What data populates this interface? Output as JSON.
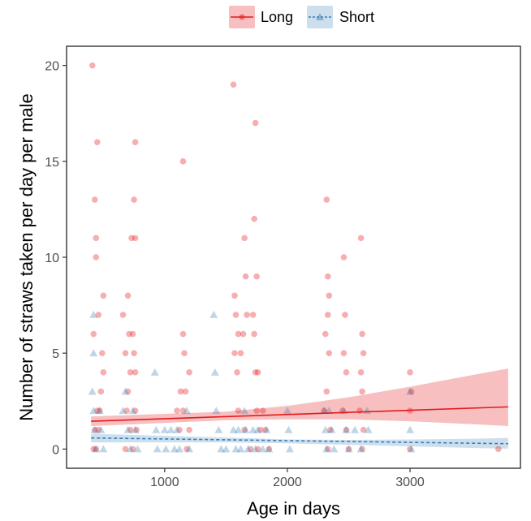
{
  "chart_data": {
    "type": "scatter",
    "title": "",
    "xlabel": "Age in days",
    "ylabel": "Number of straws taken per day per male",
    "xlim": [
      200,
      3900
    ],
    "ylim": [
      -1,
      21
    ],
    "xticks": [
      1000,
      2000,
      3000
    ],
    "yticks": [
      0,
      5,
      10,
      15,
      20
    ],
    "grid": false,
    "legend_position": "top",
    "series": [
      {
        "name": "Long",
        "color": "#e41a1c",
        "marker": "circle",
        "points": [
          [
            410,
            20
          ],
          [
            420,
            6
          ],
          [
            430,
            13
          ],
          [
            440,
            11
          ],
          [
            450,
            16
          ],
          [
            440,
            10
          ],
          [
            460,
            7
          ],
          [
            480,
            3
          ],
          [
            500,
            8
          ],
          [
            470,
            2
          ],
          [
            490,
            5
          ],
          [
            500,
            4
          ],
          [
            420,
            0
          ],
          [
            430,
            1
          ],
          [
            450,
            2
          ],
          [
            460,
            1
          ],
          [
            440,
            0
          ],
          [
            660,
            7
          ],
          [
            680,
            5
          ],
          [
            700,
            8
          ],
          [
            710,
            6
          ],
          [
            730,
            11
          ],
          [
            760,
            16
          ],
          [
            750,
            13
          ],
          [
            760,
            11
          ],
          [
            740,
            6
          ],
          [
            750,
            5
          ],
          [
            720,
            4
          ],
          [
            760,
            4
          ],
          [
            700,
            3
          ],
          [
            690,
            2
          ],
          [
            720,
            1
          ],
          [
            740,
            0
          ],
          [
            680,
            0
          ],
          [
            760,
            2
          ],
          [
            770,
            1
          ],
          [
            1130,
            3
          ],
          [
            1150,
            15
          ],
          [
            1150,
            6
          ],
          [
            1160,
            5
          ],
          [
            1170,
            3
          ],
          [
            1200,
            4
          ],
          [
            1100,
            2
          ],
          [
            1120,
            1
          ],
          [
            1180,
            0
          ],
          [
            1150,
            2
          ],
          [
            1200,
            1
          ],
          [
            1560,
            19
          ],
          [
            1570,
            8
          ],
          [
            1580,
            7
          ],
          [
            1570,
            5
          ],
          [
            1600,
            6
          ],
          [
            1620,
            5
          ],
          [
            1590,
            4
          ],
          [
            1650,
            11
          ],
          [
            1660,
            9
          ],
          [
            1670,
            7
          ],
          [
            1640,
            6
          ],
          [
            1730,
            12
          ],
          [
            1740,
            17
          ],
          [
            1750,
            9
          ],
          [
            1720,
            7
          ],
          [
            1730,
            6
          ],
          [
            1740,
            4
          ],
          [
            1760,
            4
          ],
          [
            1750,
            2
          ],
          [
            1780,
            1
          ],
          [
            1600,
            2
          ],
          [
            1650,
            1
          ],
          [
            1700,
            0
          ],
          [
            1760,
            0
          ],
          [
            1800,
            2
          ],
          [
            1820,
            1
          ],
          [
            1850,
            0
          ],
          [
            2320,
            13
          ],
          [
            2330,
            9
          ],
          [
            2340,
            8
          ],
          [
            2330,
            7
          ],
          [
            2310,
            6
          ],
          [
            2340,
            5
          ],
          [
            2320,
            3
          ],
          [
            2300,
            2
          ],
          [
            2350,
            1
          ],
          [
            2330,
            0
          ],
          [
            2460,
            10
          ],
          [
            2470,
            7
          ],
          [
            2460,
            5
          ],
          [
            2480,
            4
          ],
          [
            2450,
            2
          ],
          [
            2480,
            1
          ],
          [
            2500,
            0
          ],
          [
            2600,
            11
          ],
          [
            2610,
            6
          ],
          [
            2620,
            5
          ],
          [
            2600,
            4
          ],
          [
            2610,
            3
          ],
          [
            2590,
            2
          ],
          [
            2620,
            1
          ],
          [
            2610,
            0
          ],
          [
            3000,
            4
          ],
          [
            3010,
            3
          ],
          [
            3000,
            2
          ],
          [
            3000,
            0
          ],
          [
            3720,
            0
          ]
        ],
        "trend": [
          [
            400,
            1.45
          ],
          [
            3800,
            2.2
          ]
        ],
        "ci": [
          [
            400,
            1.2,
            1.7
          ],
          [
            1500,
            1.5,
            1.95
          ],
          [
            2000,
            1.55,
            2.25
          ],
          [
            2500,
            1.55,
            2.7
          ],
          [
            3000,
            1.45,
            3.25
          ],
          [
            3500,
            1.3,
            3.85
          ],
          [
            3800,
            1.2,
            4.2
          ]
        ]
      },
      {
        "name": "Short",
        "color": "#377eb8",
        "marker": "triangle",
        "points": [
          [
            420,
            7
          ],
          [
            420,
            5
          ],
          [
            410,
            3
          ],
          [
            420,
            2
          ],
          [
            430,
            1
          ],
          [
            440,
            0
          ],
          [
            470,
            2
          ],
          [
            480,
            1
          ],
          [
            500,
            0
          ],
          [
            660,
            2
          ],
          [
            680,
            3
          ],
          [
            700,
            1
          ],
          [
            720,
            0
          ],
          [
            740,
            2
          ],
          [
            760,
            1
          ],
          [
            780,
            0
          ],
          [
            920,
            4
          ],
          [
            930,
            1
          ],
          [
            940,
            0
          ],
          [
            1000,
            1
          ],
          [
            1010,
            0
          ],
          [
            1050,
            1
          ],
          [
            1080,
            0
          ],
          [
            1100,
            1
          ],
          [
            1120,
            0
          ],
          [
            1180,
            2
          ],
          [
            1200,
            0
          ],
          [
            1400,
            7
          ],
          [
            1410,
            4
          ],
          [
            1420,
            2
          ],
          [
            1440,
            1
          ],
          [
            1460,
            0
          ],
          [
            1500,
            0
          ],
          [
            1560,
            1
          ],
          [
            1580,
            0
          ],
          [
            1600,
            1
          ],
          [
            1620,
            0
          ],
          [
            1650,
            2
          ],
          [
            1660,
            1
          ],
          [
            1680,
            0
          ],
          [
            1720,
            1
          ],
          [
            1740,
            0
          ],
          [
            1760,
            1
          ],
          [
            1800,
            0
          ],
          [
            1830,
            1
          ],
          [
            1850,
            0
          ],
          [
            2000,
            2
          ],
          [
            2010,
            1
          ],
          [
            2020,
            0
          ],
          [
            2300,
            2
          ],
          [
            2310,
            1
          ],
          [
            2320,
            0
          ],
          [
            2340,
            2
          ],
          [
            2360,
            1
          ],
          [
            2380,
            0
          ],
          [
            2460,
            2
          ],
          [
            2480,
            1
          ],
          [
            2500,
            0
          ],
          [
            2550,
            1
          ],
          [
            2600,
            0
          ],
          [
            2650,
            2
          ],
          [
            2660,
            1
          ],
          [
            3000,
            3
          ],
          [
            3000,
            1
          ],
          [
            3010,
            0
          ]
        ],
        "trend": [
          [
            400,
            0.58
          ],
          [
            3800,
            0.28
          ]
        ],
        "ci": [
          [
            400,
            0.35,
            0.8
          ],
          [
            1500,
            0.35,
            0.6
          ],
          [
            2000,
            0.3,
            0.5
          ],
          [
            2500,
            0.22,
            0.48
          ],
          [
            3000,
            0.14,
            0.5
          ],
          [
            3500,
            0.06,
            0.54
          ],
          [
            3800,
            0.02,
            0.58
          ]
        ]
      }
    ]
  }
}
